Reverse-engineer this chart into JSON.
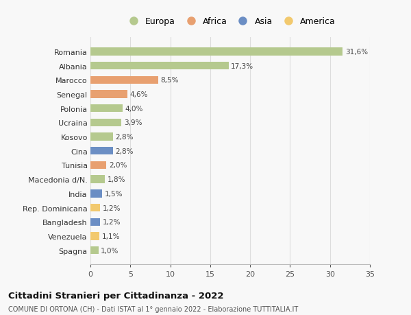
{
  "categories": [
    "Spagna",
    "Venezuela",
    "Bangladesh",
    "Rep. Dominicana",
    "India",
    "Macedonia d/N.",
    "Tunisia",
    "Cina",
    "Kosovo",
    "Ucraina",
    "Polonia",
    "Senegal",
    "Marocco",
    "Albania",
    "Romania"
  ],
  "values": [
    1.0,
    1.1,
    1.2,
    1.2,
    1.5,
    1.8,
    2.0,
    2.8,
    2.8,
    3.9,
    4.0,
    4.6,
    8.5,
    17.3,
    31.6
  ],
  "labels": [
    "1,0%",
    "1,1%",
    "1,2%",
    "1,2%",
    "1,5%",
    "1,8%",
    "2,0%",
    "2,8%",
    "2,8%",
    "3,9%",
    "4,0%",
    "4,6%",
    "8,5%",
    "17,3%",
    "31,6%"
  ],
  "colors": [
    "#b5c98e",
    "#f2c96e",
    "#6b8ec4",
    "#f2c96e",
    "#6b8ec4",
    "#b5c98e",
    "#e8a070",
    "#6b8ec4",
    "#b5c98e",
    "#b5c98e",
    "#b5c98e",
    "#e8a070",
    "#e8a070",
    "#b5c98e",
    "#b5c98e"
  ],
  "legend_labels": [
    "Europa",
    "Africa",
    "Asia",
    "America"
  ],
  "legend_colors": [
    "#b5c98e",
    "#e8a070",
    "#6b8ec4",
    "#f2c96e"
  ],
  "title": "Cittadini Stranieri per Cittadinanza - 2022",
  "subtitle": "COMUNE DI ORTONA (CH) - Dati ISTAT al 1° gennaio 2022 - Elaborazione TUTTITALIA.IT",
  "xlim": [
    0,
    35
  ],
  "xticks": [
    0,
    5,
    10,
    15,
    20,
    25,
    30,
    35
  ],
  "background_color": "#f8f8f8",
  "grid_color": "#dddddd",
  "bar_height": 0.55
}
